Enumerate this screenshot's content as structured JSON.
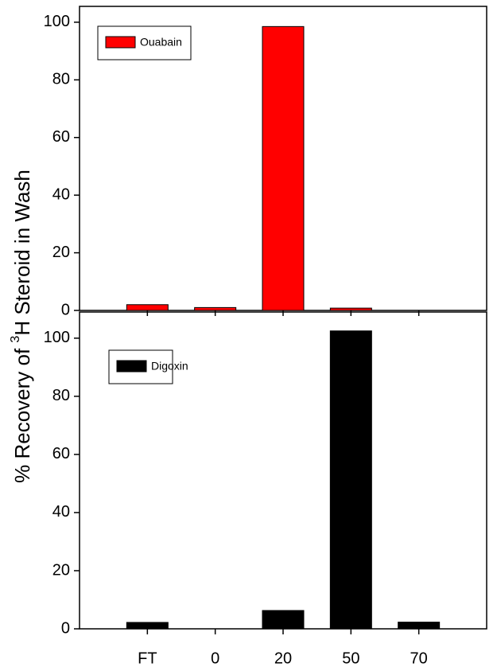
{
  "chart_data": [
    {
      "type": "bar",
      "ylabel": {
        "before": "% Recovery of ",
        "sup": "3",
        "after": "H Steroid in Wash"
      },
      "categories": [
        null,
        null,
        null,
        null,
        null
      ],
      "series": [
        {
          "name": "Ouabain",
          "color": "#ff0000",
          "values": [
            2,
            1,
            98.5,
            0.8,
            0
          ]
        }
      ],
      "ylim": [
        0,
        105.5
      ],
      "yticks": [
        0,
        20,
        40,
        60,
        80,
        100
      ],
      "legend": "upper left"
    },
    {
      "type": "bar",
      "categories": [
        "FT",
        "0",
        "20",
        "50",
        "70"
      ],
      "series": [
        {
          "name": "Digoxin",
          "color": "#000000",
          "values": [
            2.2,
            0,
            6.3,
            102.5,
            2.3
          ]
        }
      ],
      "ylim": [
        0,
        109
      ],
      "yticks": [
        0,
        20,
        40,
        60,
        80,
        100
      ],
      "legend": "upper left"
    }
  ]
}
